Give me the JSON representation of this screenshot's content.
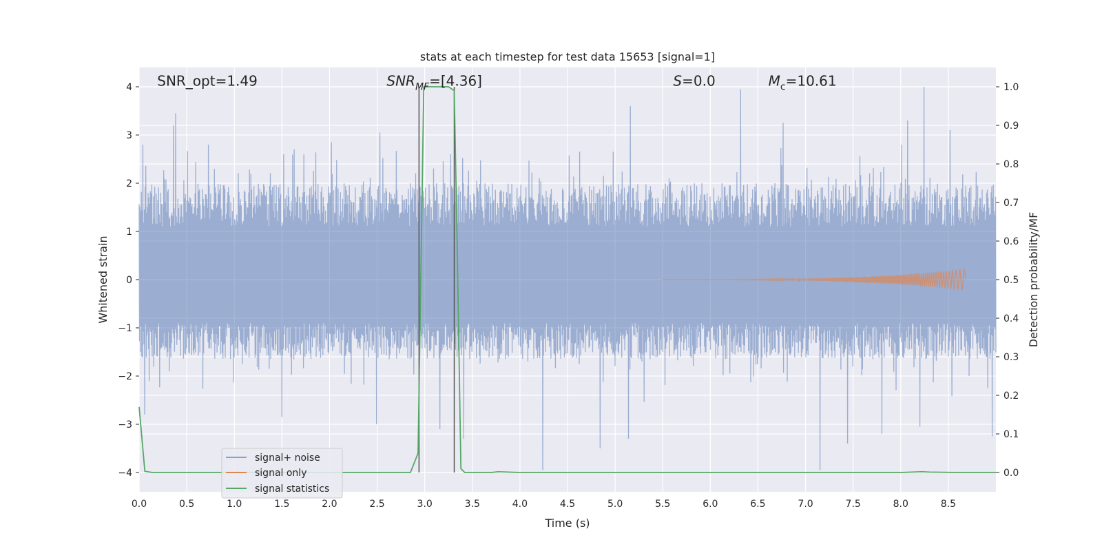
{
  "chart_data": {
    "type": "line",
    "title": "stats at each timestep for test data 15653 [signal=1]",
    "xlabel": "Time (s)",
    "ylabel": "Whitened strain",
    "y2label": "Detection probability/MF",
    "xlim": [
      0.0,
      9.0
    ],
    "ylim": [
      -4.4,
      4.4
    ],
    "y2lim": [
      -0.05,
      1.05
    ],
    "x_ticks": [
      0.0,
      0.5,
      1.0,
      1.5,
      2.0,
      2.5,
      3.0,
      3.5,
      4.0,
      4.5,
      5.0,
      5.5,
      6.0,
      6.5,
      7.0,
      7.5,
      8.0,
      8.5
    ],
    "x_tick_labels": [
      "0.0",
      "0.5",
      "1.0",
      "1.5",
      "2.0",
      "2.5",
      "3.0",
      "3.5",
      "4.0",
      "4.5",
      "5.0",
      "5.5",
      "6.0",
      "6.5",
      "7.0",
      "7.5",
      "8.0",
      "8.5"
    ],
    "y_ticks": [
      -4,
      -3,
      -2,
      -1,
      0,
      1,
      2,
      3,
      4
    ],
    "y_tick_labels": [
      "−4",
      "−3",
      "−2",
      "−1",
      "0",
      "1",
      "2",
      "3",
      "4"
    ],
    "y2_ticks": [
      0.0,
      0.1,
      0.2,
      0.3,
      0.4,
      0.5,
      0.6,
      0.7,
      0.8,
      0.9,
      1.0
    ],
    "y2_tick_labels": [
      "0.0",
      "0.1",
      "0.2",
      "0.3",
      "0.4",
      "0.5",
      "0.6",
      "0.7",
      "0.8",
      "0.9",
      "1.0"
    ],
    "grid": true,
    "background": "#eaeaf2",
    "annotations": [
      {
        "id": "snr-opt",
        "parts": [
          {
            "text": "SNR_opt=1.49",
            "italic": false
          }
        ],
        "x": 0.19,
        "y": 4.12
      },
      {
        "id": "snr-mf",
        "parts": [
          {
            "text": "SNR",
            "italic": true
          },
          {
            "text": "MF",
            "italic": true,
            "sub": true
          },
          {
            "text": "=[4.36]",
            "italic": false
          }
        ],
        "x": 2.6,
        "y": 4.12
      },
      {
        "id": "s-value",
        "parts": [
          {
            "text": "S",
            "italic": true
          },
          {
            "text": "=0.0",
            "italic": false
          }
        ],
        "x": 5.61,
        "y": 4.12
      },
      {
        "id": "mc-value",
        "parts": [
          {
            "text": "M",
            "italic": true
          },
          {
            "text": "c",
            "italic": false,
            "sub": true
          },
          {
            "text": "=10.61",
            "italic": false
          }
        ],
        "x": 6.61,
        "y": 4.12
      }
    ],
    "vlines": [
      {
        "x": 2.94,
        "y_from": -4.0,
        "y_to": 4.0,
        "color": "#555555"
      },
      {
        "x": 3.31,
        "y_from": -4.0,
        "y_to": 4.0,
        "color": "#555555"
      }
    ],
    "legend": {
      "placement": "lower-left",
      "entries": [
        {
          "label": "signal+ noise",
          "color": "#8da0cb"
        },
        {
          "label": "signal only",
          "color": "#dd8452"
        },
        {
          "label": "signal statistics",
          "color": "#55a868"
        }
      ]
    },
    "series": [
      {
        "name": "signal+ noise",
        "color": "#4c72b0",
        "opacity": 0.5,
        "axis": "left",
        "kind": "noise",
        "samples": 2300,
        "envelope_upper": 2.0,
        "envelope_lower": -1.5,
        "peaks": [
          {
            "x": 0.04,
            "y": 2.8
          },
          {
            "x": 0.36,
            "y": 3.2
          },
          {
            "x": 0.38,
            "y": 3.45
          },
          {
            "x": 0.73,
            "y": 2.8
          },
          {
            "x": 1.52,
            "y": 2.6
          },
          {
            "x": 2.02,
            "y": 2.85
          },
          {
            "x": 2.53,
            "y": 3.05
          },
          {
            "x": 3.27,
            "y": 2.6
          },
          {
            "x": 5.16,
            "y": 3.6
          },
          {
            "x": 6.32,
            "y": 3.95
          },
          {
            "x": 6.76,
            "y": 3.25
          },
          {
            "x": 8.24,
            "y": 4.0
          },
          {
            "x": 8.07,
            "y": 3.3
          },
          {
            "x": 8.52,
            "y": 3.1
          },
          {
            "x": 0.06,
            "y": -2.8
          },
          {
            "x": 1.5,
            "y": -2.85
          },
          {
            "x": 2.49,
            "y": -3.0
          },
          {
            "x": 3.16,
            "y": -3.1
          },
          {
            "x": 3.41,
            "y": -3.3
          },
          {
            "x": 4.24,
            "y": -3.95
          },
          {
            "x": 4.84,
            "y": -3.5
          },
          {
            "x": 5.14,
            "y": -3.3
          },
          {
            "x": 7.15,
            "y": -3.95
          },
          {
            "x": 7.8,
            "y": -3.2
          },
          {
            "x": 8.2,
            "y": -3.05
          },
          {
            "x": 8.96,
            "y": -3.25
          },
          {
            "x": 7.44,
            "y": -3.4
          }
        ]
      },
      {
        "name": "signal only",
        "color": "#dd8452",
        "opacity": 0.7,
        "axis": "left",
        "kind": "chirp",
        "x_start": 5.5,
        "x_end": 8.68,
        "amp_end": 0.22
      },
      {
        "name": "signal statistics",
        "color": "#55a868",
        "axis": "right",
        "kind": "line",
        "x": [
          0.0,
          0.06,
          0.14,
          0.3,
          1.0,
          2.0,
          2.5,
          2.85,
          2.93,
          2.99,
          3.02,
          3.25,
          3.31,
          3.34,
          3.38,
          3.42,
          3.7,
          3.77,
          4.0,
          5.0,
          6.0,
          7.0,
          8.0,
          8.22,
          8.3,
          8.6,
          9.0
        ],
        "y": [
          0.17,
          0.003,
          0.0,
          0.0,
          0.0,
          0.0,
          0.0,
          0.0,
          0.05,
          1.0,
          1.0,
          1.0,
          0.99,
          0.6,
          0.01,
          0.0,
          0.0,
          0.002,
          0.0,
          0.0,
          0.0,
          0.0,
          0.0,
          0.002,
          0.001,
          0.0,
          0.0
        ]
      }
    ]
  }
}
